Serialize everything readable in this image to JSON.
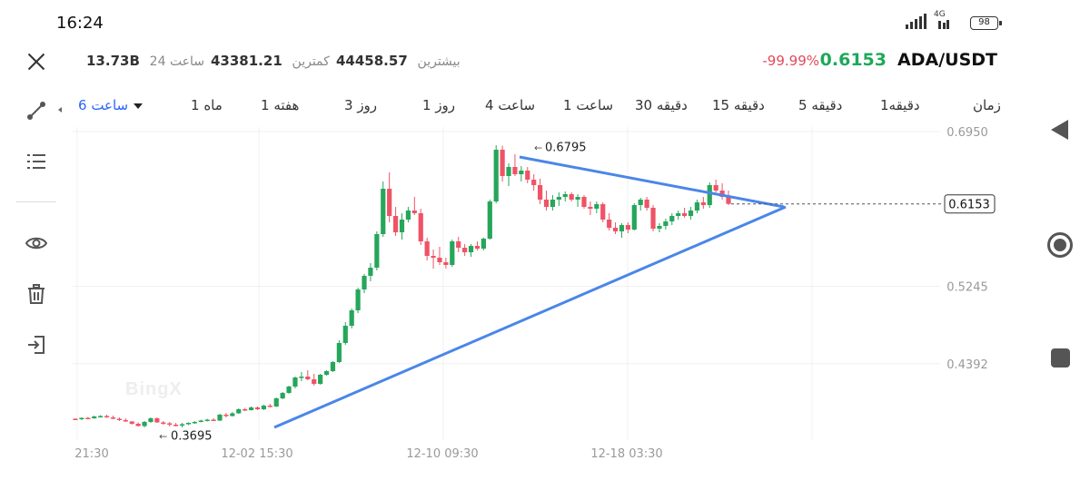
{
  "status": {
    "time": "16:24",
    "network": "4G",
    "battery": "98"
  },
  "header": {
    "pair": "ADA/USDT",
    "last_price": "0.6153",
    "change": "-99.99%",
    "high_label": "بیشترین",
    "high_value": "44458.57",
    "low_label": "کمترین",
    "low_value": "43381.21",
    "volume_label": "24 ساعت",
    "volume_value": "13.73B"
  },
  "timeframes": [
    {
      "label": "زمان"
    },
    {
      "label": "1دقیقه"
    },
    {
      "label": "5 دقیقه"
    },
    {
      "label": "15 دقیقه"
    },
    {
      "label": "30 دقیقه"
    },
    {
      "label": "1 ساعت"
    },
    {
      "label": "4 ساعت"
    },
    {
      "label": "1 روز"
    },
    {
      "label": "3 روز"
    },
    {
      "label": "1 هفته"
    },
    {
      "label": "1 ماه"
    },
    {
      "label": "6 ساعت",
      "active": true
    }
  ],
  "tools": [
    "trendline-icon",
    "list-icon",
    "eye-icon",
    "trash-icon",
    "exit-icon"
  ],
  "colors": {
    "up": "#26a65b",
    "down": "#ef5366",
    "trendline": "#4a86e8",
    "accent": "#2962ff",
    "price_line": "#555555"
  },
  "chart_data": {
    "type": "candlestick",
    "watermark": "BingX",
    "y_ticks": [
      "0.6950",
      "0.5245",
      "0.4392"
    ],
    "y_tick_values": [
      0.695,
      0.5245,
      0.4392
    ],
    "x_ticks": [
      "21:30",
      "12-02 15:30",
      "12-10 09:30",
      "12-18 03:30"
    ],
    "ylim": [
      0.355,
      0.7
    ],
    "last_price_label": "0.6153",
    "last_price": 0.6153,
    "high_marker": {
      "label": "0.6795",
      "value": 0.6795
    },
    "low_marker": {
      "label": "0.3695",
      "value": 0.3695
    },
    "candles": [
      [
        0.3785,
        0.379,
        0.377,
        0.378
      ],
      [
        0.378,
        0.38,
        0.377,
        0.3795
      ],
      [
        0.3795,
        0.3805,
        0.378,
        0.379
      ],
      [
        0.379,
        0.382,
        0.3785,
        0.381
      ],
      [
        0.381,
        0.3825,
        0.38,
        0.3815
      ],
      [
        0.3815,
        0.383,
        0.3795,
        0.38
      ],
      [
        0.38,
        0.382,
        0.378,
        0.3785
      ],
      [
        0.3785,
        0.38,
        0.376,
        0.377
      ],
      [
        0.377,
        0.379,
        0.375,
        0.3755
      ],
      [
        0.3755,
        0.376,
        0.372,
        0.373
      ],
      [
        0.373,
        0.3745,
        0.37,
        0.3705
      ],
      [
        0.3705,
        0.376,
        0.369,
        0.375
      ],
      [
        0.375,
        0.38,
        0.374,
        0.379
      ],
      [
        0.379,
        0.38,
        0.374,
        0.3745
      ],
      [
        0.3745,
        0.376,
        0.372,
        0.3735
      ],
      [
        0.3735,
        0.375,
        0.37,
        0.372
      ],
      [
        0.372,
        0.374,
        0.37,
        0.3715
      ],
      [
        0.3715,
        0.374,
        0.369,
        0.3725
      ],
      [
        0.3725,
        0.3745,
        0.3715,
        0.374
      ],
      [
        0.374,
        0.376,
        0.373,
        0.375
      ],
      [
        0.375,
        0.3775,
        0.3745,
        0.3765
      ],
      [
        0.3765,
        0.3785,
        0.3755,
        0.3775
      ],
      [
        0.3775,
        0.379,
        0.376,
        0.3765
      ],
      [
        0.3765,
        0.384,
        0.376,
        0.383
      ],
      [
        0.383,
        0.385,
        0.38,
        0.3815
      ],
      [
        0.3815,
        0.386,
        0.381,
        0.3845
      ],
      [
        0.3845,
        0.39,
        0.384,
        0.389
      ],
      [
        0.389,
        0.3905,
        0.387,
        0.388
      ],
      [
        0.388,
        0.392,
        0.3875,
        0.391
      ],
      [
        0.391,
        0.392,
        0.388,
        0.389
      ],
      [
        0.389,
        0.394,
        0.388,
        0.393
      ],
      [
        0.393,
        0.395,
        0.391,
        0.392
      ],
      [
        0.392,
        0.402,
        0.3915,
        0.401
      ],
      [
        0.401,
        0.408,
        0.4,
        0.407
      ],
      [
        0.407,
        0.415,
        0.406,
        0.414
      ],
      [
        0.414,
        0.425,
        0.412,
        0.424
      ],
      [
        0.424,
        0.43,
        0.42,
        0.425
      ],
      [
        0.425,
        0.432,
        0.421,
        0.422
      ],
      [
        0.422,
        0.428,
        0.415,
        0.417
      ],
      [
        0.417,
        0.428,
        0.416,
        0.427
      ],
      [
        0.427,
        0.432,
        0.426,
        0.431
      ],
      [
        0.431,
        0.442,
        0.43,
        0.441
      ],
      [
        0.441,
        0.465,
        0.44,
        0.462
      ],
      [
        0.462,
        0.485,
        0.46,
        0.481
      ],
      [
        0.481,
        0.5,
        0.478,
        0.498
      ],
      [
        0.498,
        0.523,
        0.495,
        0.521
      ],
      [
        0.521,
        0.538,
        0.517,
        0.536
      ],
      [
        0.536,
        0.55,
        0.53,
        0.545
      ],
      [
        0.545,
        0.585,
        0.542,
        0.582
      ],
      [
        0.582,
        0.64,
        0.579,
        0.632
      ],
      [
        0.632,
        0.65,
        0.595,
        0.602
      ],
      [
        0.602,
        0.612,
        0.58,
        0.584
      ],
      [
        0.584,
        0.605,
        0.576,
        0.598
      ],
      [
        0.598,
        0.612,
        0.595,
        0.608
      ],
      [
        0.608,
        0.623,
        0.603,
        0.605
      ],
      [
        0.605,
        0.61,
        0.57,
        0.574
      ],
      [
        0.574,
        0.578,
        0.553,
        0.558
      ],
      [
        0.558,
        0.565,
        0.544,
        0.556
      ],
      [
        0.556,
        0.568,
        0.548,
        0.551
      ],
      [
        0.551,
        0.556,
        0.544,
        0.548
      ],
      [
        0.548,
        0.576,
        0.546,
        0.574
      ],
      [
        0.574,
        0.579,
        0.562,
        0.567
      ],
      [
        0.567,
        0.571,
        0.558,
        0.562
      ],
      [
        0.562,
        0.571,
        0.557,
        0.569
      ],
      [
        0.569,
        0.574,
        0.564,
        0.566
      ],
      [
        0.566,
        0.578,
        0.564,
        0.577
      ],
      [
        0.577,
        0.62,
        0.576,
        0.618
      ],
      [
        0.618,
        0.68,
        0.616,
        0.675
      ],
      [
        0.675,
        0.6795,
        0.64,
        0.646
      ],
      [
        0.646,
        0.66,
        0.635,
        0.656
      ],
      [
        0.656,
        0.67,
        0.646,
        0.648
      ],
      [
        0.648,
        0.657,
        0.64,
        0.652
      ],
      [
        0.652,
        0.656,
        0.638,
        0.642
      ],
      [
        0.642,
        0.648,
        0.63,
        0.636
      ],
      [
        0.636,
        0.643,
        0.615,
        0.62
      ],
      [
        0.62,
        0.63,
        0.608,
        0.612
      ],
      [
        0.612,
        0.625,
        0.608,
        0.62
      ],
      [
        0.62,
        0.628,
        0.613,
        0.623
      ],
      [
        0.623,
        0.629,
        0.618,
        0.626
      ],
      [
        0.626,
        0.628,
        0.618,
        0.62
      ],
      [
        0.62,
        0.626,
        0.612,
        0.623
      ],
      [
        0.623,
        0.625,
        0.61,
        0.612
      ],
      [
        0.612,
        0.618,
        0.603,
        0.61
      ],
      [
        0.61,
        0.618,
        0.605,
        0.615
      ],
      [
        0.615,
        0.617,
        0.595,
        0.598
      ],
      [
        0.598,
        0.605,
        0.586,
        0.589
      ],
      [
        0.589,
        0.595,
        0.582,
        0.585
      ],
      [
        0.585,
        0.594,
        0.578,
        0.592
      ],
      [
        0.592,
        0.595,
        0.583,
        0.587
      ],
      [
        0.587,
        0.616,
        0.586,
        0.614
      ],
      [
        0.614,
        0.622,
        0.608,
        0.62
      ],
      [
        0.62,
        0.623,
        0.608,
        0.611
      ],
      [
        0.611,
        0.614,
        0.585,
        0.588
      ],
      [
        0.588,
        0.594,
        0.584,
        0.591
      ],
      [
        0.591,
        0.599,
        0.587,
        0.596
      ],
      [
        0.596,
        0.605,
        0.592,
        0.602
      ],
      [
        0.602,
        0.608,
        0.598,
        0.605
      ],
      [
        0.605,
        0.611,
        0.6,
        0.602
      ],
      [
        0.602,
        0.612,
        0.598,
        0.608
      ],
      [
        0.608,
        0.62,
        0.605,
        0.617
      ],
      [
        0.617,
        0.623,
        0.61,
        0.614
      ],
      [
        0.614,
        0.639,
        0.611,
        0.636
      ],
      [
        0.636,
        0.642,
        0.628,
        0.63
      ],
      [
        0.63,
        0.638,
        0.62,
        0.623
      ],
      [
        0.623,
        0.63,
        0.614,
        0.6153
      ]
    ]
  }
}
